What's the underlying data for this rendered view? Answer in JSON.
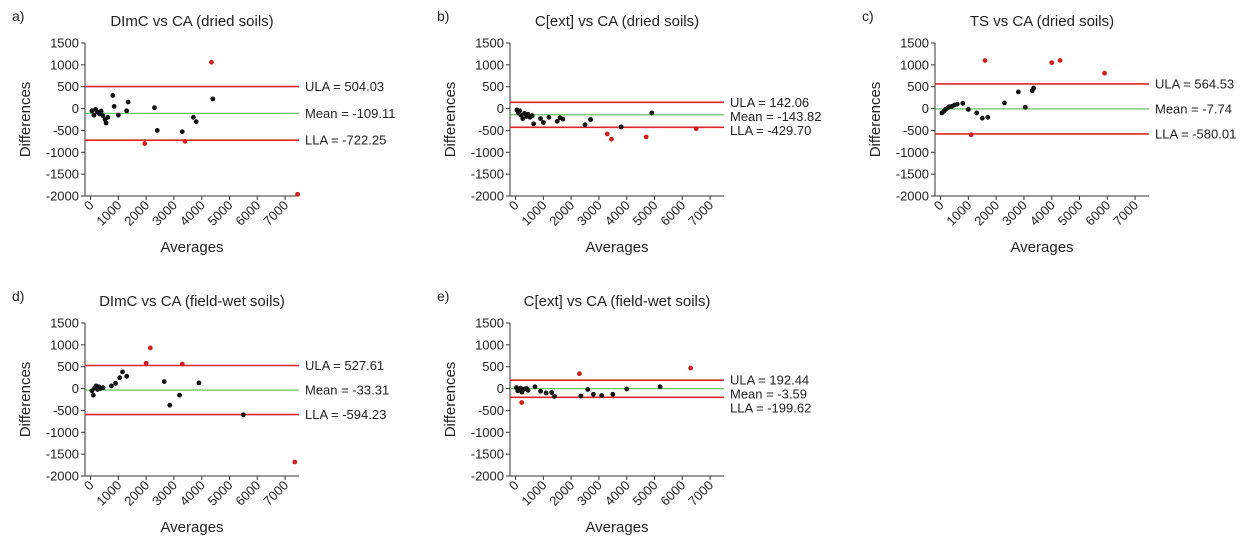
{
  "figure": {
    "colors": {
      "limit_line": "#d9262b",
      "mean_line": "#5cb85c",
      "normal_point": "#111111",
      "outlier_point": "#d11f1f",
      "axis": "#333333"
    }
  },
  "chart_data": [
    {
      "type": "scatter",
      "panel": "a)",
      "title": "DImC vs CA (dried soils)",
      "xlabel": "Averages",
      "ylabel": "Differences",
      "xticks": [
        0,
        1000,
        2000,
        3000,
        4000,
        5000,
        6000,
        7000
      ],
      "yticks": [
        -2000,
        -1500,
        -1000,
        -500,
        0,
        500,
        1000,
        1500
      ],
      "xlim": [
        -200,
        7500
      ],
      "ylim": [
        -2000,
        1500
      ],
      "ula": 504.03,
      "mean": -109.11,
      "lla": -722.25,
      "ula_label": "ULA = 504.03",
      "mean_label": "Mean = -109.11",
      "lla_label": "LLA = -722.25",
      "points": [
        [
          50,
          -50
        ],
        [
          120,
          -150
        ],
        [
          180,
          -20
        ],
        [
          250,
          -80
        ],
        [
          320,
          -120
        ],
        [
          380,
          -60
        ],
        [
          440,
          -160
        ],
        [
          520,
          -250
        ],
        [
          560,
          -330
        ],
        [
          620,
          -200
        ],
        [
          800,
          300
        ],
        [
          850,
          50
        ],
        [
          1000,
          -150
        ],
        [
          1300,
          -50
        ],
        [
          1350,
          150
        ],
        [
          2300,
          20
        ],
        [
          2400,
          -500
        ],
        [
          3300,
          -530
        ],
        [
          3700,
          -200
        ],
        [
          3800,
          -300
        ],
        [
          4400,
          220
        ]
      ],
      "outliers": [
        [
          1950,
          -800
        ],
        [
          3400,
          -750
        ],
        [
          4350,
          1060
        ],
        [
          7450,
          -1960
        ]
      ]
    },
    {
      "type": "scatter",
      "panel": "b)",
      "title": "C[ext] vs CA (dried soils)",
      "xlabel": "Averages",
      "ylabel": "Differences",
      "xticks": [
        0,
        1000,
        2000,
        3000,
        4000,
        5000,
        6000,
        7000
      ],
      "yticks": [
        -2000,
        -1500,
        -1000,
        -500,
        0,
        500,
        1000,
        1500
      ],
      "xlim": [
        -200,
        7500
      ],
      "ylim": [
        -2000,
        1500
      ],
      "ula": 142.06,
      "mean": -143.82,
      "lla": -429.7,
      "ula_label": "ULA = 142.06",
      "mean_label": "Mean = -143.82",
      "lla_label": "LLA = -429.70",
      "points": [
        [
          50,
          -30
        ],
        [
          100,
          -100
        ],
        [
          150,
          -50
        ],
        [
          200,
          -150
        ],
        [
          260,
          -230
        ],
        [
          320,
          -110
        ],
        [
          400,
          -180
        ],
        [
          450,
          -130
        ],
        [
          520,
          -200
        ],
        [
          600,
          -160
        ],
        [
          650,
          -350
        ],
        [
          900,
          -230
        ],
        [
          1000,
          -320
        ],
        [
          1200,
          -200
        ],
        [
          1500,
          -290
        ],
        [
          1600,
          -210
        ],
        [
          1700,
          -240
        ],
        [
          2500,
          -370
        ],
        [
          2700,
          -250
        ],
        [
          3800,
          -420
        ],
        [
          4900,
          -100
        ]
      ],
      "outliers": [
        [
          3300,
          -580
        ],
        [
          3450,
          -700
        ],
        [
          4700,
          -650
        ],
        [
          6500,
          -460
        ]
      ]
    },
    {
      "type": "scatter",
      "panel": "c)",
      "title": "TS vs CA (dried soils)",
      "xlabel": "Averages",
      "ylabel": "Differences",
      "xticks": [
        0,
        1000,
        2000,
        3000,
        4000,
        5000,
        6000,
        7000
      ],
      "yticks": [
        -2000,
        -1500,
        -1000,
        -500,
        0,
        500,
        1000,
        1500
      ],
      "xlim": [
        -200,
        7500
      ],
      "ylim": [
        -2000,
        1500
      ],
      "ula": 564.53,
      "mean": -7.74,
      "lla": -580.01,
      "ula_label": "ULA = 564.53",
      "mean_label": "Mean = -7.74",
      "lla_label": "LLA = -580.01",
      "points": [
        [
          50,
          -100
        ],
        [
          120,
          -60
        ],
        [
          180,
          -20
        ],
        [
          250,
          10
        ],
        [
          320,
          40
        ],
        [
          400,
          50
        ],
        [
          500,
          80
        ],
        [
          600,
          100
        ],
        [
          800,
          120
        ],
        [
          1000,
          -20
        ],
        [
          1300,
          -100
        ],
        [
          1500,
          -220
        ],
        [
          1700,
          -200
        ],
        [
          2300,
          130
        ],
        [
          2800,
          380
        ],
        [
          3050,
          30
        ],
        [
          3300,
          410
        ],
        [
          3350,
          470
        ]
      ],
      "outliers": [
        [
          1100,
          -600
        ],
        [
          1600,
          1100
        ],
        [
          4000,
          1050
        ],
        [
          4300,
          1100
        ],
        [
          5900,
          810
        ]
      ]
    },
    {
      "type": "scatter",
      "panel": "d)",
      "title": "DImC vs CA (field-wet soils)",
      "xlabel": "Averages",
      "ylabel": "Differences",
      "xticks": [
        0,
        1000,
        2000,
        3000,
        4000,
        5000,
        6000,
        7000
      ],
      "yticks": [
        -2000,
        -1500,
        -1000,
        -500,
        0,
        500,
        1000,
        1500
      ],
      "xlim": [
        -200,
        7500
      ],
      "ylim": [
        -2000,
        1500
      ],
      "ula": 527.61,
      "mean": -33.31,
      "lla": -594.23,
      "ula_label": "ULA = 527.61",
      "mean_label": "Mean = -33.31",
      "lla_label": "LLA = -594.23",
      "points": [
        [
          50,
          -50
        ],
        [
          100,
          -150
        ],
        [
          150,
          20
        ],
        [
          200,
          60
        ],
        [
          250,
          -20
        ],
        [
          300,
          40
        ],
        [
          350,
          0
        ],
        [
          450,
          20
        ],
        [
          750,
          60
        ],
        [
          900,
          120
        ],
        [
          1050,
          250
        ],
        [
          1150,
          380
        ],
        [
          1300,
          280
        ],
        [
          2650,
          160
        ],
        [
          2850,
          -380
        ],
        [
          3200,
          -150
        ],
        [
          3900,
          130
        ],
        [
          5500,
          -600
        ]
      ],
      "outliers": [
        [
          2000,
          580
        ],
        [
          2150,
          930
        ],
        [
          3300,
          560
        ],
        [
          7350,
          -1680
        ]
      ]
    },
    {
      "type": "scatter",
      "panel": "e)",
      "title": "C[ext] vs CA (field-wet soils)",
      "xlabel": "Averages",
      "ylabel": "Differences",
      "xticks": [
        0,
        1000,
        2000,
        3000,
        4000,
        5000,
        6000,
        7000
      ],
      "yticks": [
        -2000,
        -1500,
        -1000,
        -500,
        0,
        500,
        1000,
        1500
      ],
      "xlim": [
        -200,
        7500
      ],
      "ylim": [
        -2000,
        1500
      ],
      "ula": 192.44,
      "mean": -3.59,
      "lla": -199.62,
      "ula_label": "ULA = 192.44",
      "mean_label": "Mean = -3.59",
      "lla_label": "LLA = -199.62",
      "points": [
        [
          30,
          20
        ],
        [
          80,
          -50
        ],
        [
          120,
          -30
        ],
        [
          180,
          10
        ],
        [
          230,
          -80
        ],
        [
          280,
          -20
        ],
        [
          330,
          -10
        ],
        [
          400,
          0
        ],
        [
          450,
          -40
        ],
        [
          700,
          40
        ],
        [
          900,
          -60
        ],
        [
          1100,
          -100
        ],
        [
          1300,
          -90
        ],
        [
          1400,
          -180
        ],
        [
          2350,
          -170
        ],
        [
          2600,
          -20
        ],
        [
          2800,
          -130
        ],
        [
          3100,
          -160
        ],
        [
          3500,
          -130
        ],
        [
          4000,
          -10
        ],
        [
          5200,
          40
        ]
      ],
      "outliers": [
        [
          220,
          -320
        ],
        [
          2300,
          340
        ],
        [
          6300,
          470
        ]
      ]
    }
  ]
}
